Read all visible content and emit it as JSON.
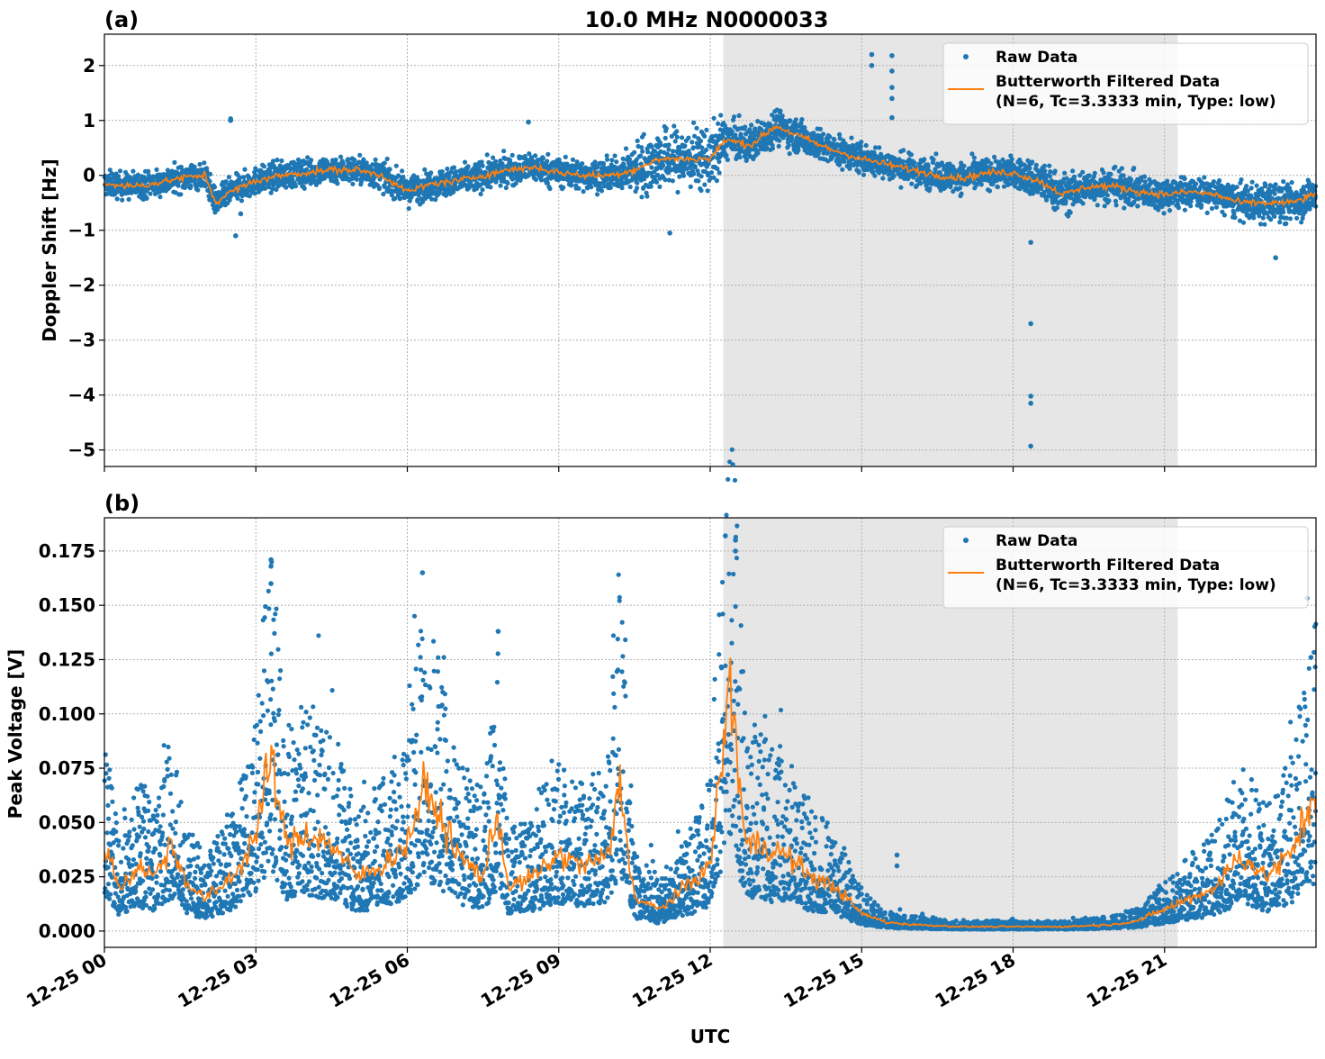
{
  "chart_data": [
    {
      "type": "scatter",
      "panel_label": "(a)",
      "title": "10.0 MHz N0000033",
      "xlabel": "",
      "ylabel": "Doppler Shift [Hz]",
      "xlim": [
        "12-25 00:00",
        "12-26 00:00"
      ],
      "ylim": [
        -5.3,
        2.57
      ],
      "yticks": [
        -5,
        -4,
        -3,
        -2,
        -1,
        0,
        1,
        2
      ],
      "ytick_labels": [
        "−5",
        "−4",
        "−3",
        "−2",
        "−1",
        "0",
        "1",
        "2"
      ],
      "grid": true,
      "legend_placement": "top-right",
      "shaded_region_utc_hours": [
        12.26,
        21.26
      ],
      "series": [
        {
          "name": "Raw Data",
          "type": "scatter",
          "color": "#1f77b4",
          "spread_by_hour": [
            [
              0,
              0.3
            ],
            [
              10.3,
              0.35
            ],
            [
              10.6,
              0.7
            ],
            [
              12.2,
              0.7
            ],
            [
              12.3,
              0.45
            ],
            [
              14.5,
              0.35
            ],
            [
              18.2,
              0.35
            ],
            [
              18.4,
              0.5
            ],
            [
              19.6,
              0.4
            ],
            [
              22,
              0.35
            ],
            [
              23.2,
              0.5
            ],
            [
              24,
              0.4
            ]
          ],
          "outliers": [
            [
              2.5,
              1.0
            ],
            [
              2.5,
              1.03
            ],
            [
              2.6,
              -1.1
            ],
            [
              2.7,
              -0.7
            ],
            [
              8.4,
              0.97
            ],
            [
              11.2,
              -1.05
            ],
            [
              15.2,
              2.2
            ],
            [
              15.2,
              2.0
            ],
            [
              15.6,
              2.18
            ],
            [
              15.6,
              1.9
            ],
            [
              15.6,
              1.6
            ],
            [
              15.6,
              1.4
            ],
            [
              15.6,
              1.05
            ],
            [
              18.35,
              -1.22
            ],
            [
              18.35,
              -2.7
            ],
            [
              18.35,
              -4.02
            ],
            [
              18.35,
              -4.15
            ],
            [
              18.35,
              -4.93
            ],
            [
              23.2,
              -1.5
            ]
          ]
        },
        {
          "name": "Butterworth Filtered Data\n(N=6, Tc=3.3333 min, Type: low)",
          "type": "line",
          "color": "#ff7f0e",
          "x_utc_hours": [
            0,
            0.5,
            1,
            1.5,
            2,
            2.2,
            2.5,
            3,
            3.5,
            4,
            4.5,
            5,
            5.5,
            6,
            6.5,
            7,
            7.5,
            8,
            8.5,
            9,
            9.5,
            10,
            10.5,
            11,
            11.5,
            12,
            12.3,
            12.8,
            13.3,
            13.8,
            14.3,
            15,
            15.5,
            16,
            16.5,
            17,
            17.5,
            18,
            18.5,
            19,
            19.5,
            20,
            20.5,
            21,
            21.5,
            22,
            22.5,
            23,
            23.5,
            24
          ],
          "y": [
            -0.15,
            -0.2,
            -0.15,
            -0.05,
            0.0,
            -0.5,
            -0.3,
            -0.1,
            0.0,
            0.05,
            0.1,
            0.1,
            0.0,
            -0.3,
            -0.15,
            -0.1,
            0.0,
            0.1,
            0.15,
            0.05,
            0.0,
            0.0,
            0.1,
            0.3,
            0.3,
            0.3,
            0.65,
            0.55,
            0.9,
            0.7,
            0.5,
            0.3,
            0.2,
            0.1,
            0.0,
            -0.05,
            0.05,
            0.05,
            -0.1,
            -0.35,
            -0.2,
            -0.2,
            -0.3,
            -0.35,
            -0.3,
            -0.35,
            -0.5,
            -0.5,
            -0.5,
            -0.35
          ]
        }
      ]
    },
    {
      "type": "scatter",
      "panel_label": "(b)",
      "title": "",
      "xlabel": "UTC",
      "ylabel": "Peak Voltage [V]",
      "xlim": [
        "12-25 00:00",
        "12-26 00:00"
      ],
      "xticks_utc_hours": [
        0,
        3,
        6,
        9,
        12,
        15,
        18,
        21
      ],
      "xtick_labels": [
        "12-25 00",
        "12-25 03",
        "12-25 06",
        "12-25 09",
        "12-25 12",
        "12-25 15",
        "12-25 18",
        "12-25 21"
      ],
      "ylim": [
        -0.0075,
        0.1903
      ],
      "yticks": [
        0,
        0.025,
        0.05,
        0.075,
        0.1,
        0.125,
        0.15,
        0.175
      ],
      "ytick_labels": [
        "0.000",
        "0.025",
        "0.050",
        "0.075",
        "0.100",
        "0.125",
        "0.150",
        "0.175"
      ],
      "grid": true,
      "legend_placement": "top-right",
      "shaded_region_utc_hours": [
        12.26,
        21.26
      ],
      "series": [
        {
          "name": "Raw Data",
          "type": "scatter",
          "color": "#1f77b4",
          "outliers": [
            [
              3.3,
              0.171
            ],
            [
              3.3,
              0.168
            ],
            [
              3.3,
              0.16
            ],
            [
              6.3,
              0.165
            ],
            [
              7.8,
              0.138
            ],
            [
              12.3,
              0.182
            ],
            [
              12.5,
              0.18
            ],
            [
              12.5,
              0.175
            ],
            [
              15.7,
              0.035
            ],
            [
              15.7,
              0.03
            ],
            [
              23.9,
              0.126
            ]
          ]
        },
        {
          "name": "Butterworth Filtered Data\n(N=6, Tc=3.3333 min, Type: low)",
          "type": "line",
          "color": "#ff7f0e",
          "x_utc_hours": [
            0,
            0.3,
            0.7,
            1,
            1.3,
            1.7,
            2,
            2.3,
            2.7,
            3,
            3.3,
            3.6,
            4,
            4.5,
            5,
            5.5,
            6,
            6.3,
            6.6,
            7,
            7.5,
            7.8,
            8,
            8.5,
            9,
            9.5,
            10,
            10.2,
            10.5,
            11,
            11.5,
            12,
            12.4,
            12.7,
            13,
            13.5,
            14,
            14.5,
            15,
            15.5,
            16,
            17,
            18,
            19,
            20,
            20.5,
            21,
            21.5,
            22,
            22.5,
            23,
            23.5,
            24
          ],
          "y": [
            0.04,
            0.02,
            0.03,
            0.025,
            0.04,
            0.02,
            0.015,
            0.02,
            0.03,
            0.045,
            0.08,
            0.04,
            0.045,
            0.04,
            0.025,
            0.03,
            0.04,
            0.065,
            0.055,
            0.035,
            0.025,
            0.055,
            0.02,
            0.025,
            0.035,
            0.03,
            0.035,
            0.07,
            0.015,
            0.01,
            0.02,
            0.03,
            0.115,
            0.04,
            0.04,
            0.035,
            0.025,
            0.02,
            0.008,
            0.004,
            0.003,
            0.002,
            0.002,
            0.002,
            0.003,
            0.005,
            0.01,
            0.015,
            0.02,
            0.035,
            0.025,
            0.035,
            0.065
          ]
        }
      ]
    }
  ],
  "legend": {
    "raw_label": "Raw Data",
    "filtered_line1": "Butterworth Filtered Data",
    "filtered_line2": "(N=6, Tc=3.3333 min, Type: low)"
  }
}
